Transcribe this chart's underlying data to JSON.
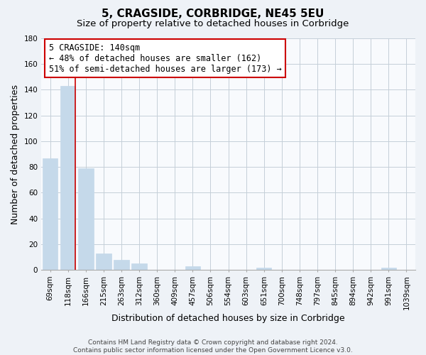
{
  "title": "5, CRAGSIDE, CORBRIDGE, NE45 5EU",
  "subtitle": "Size of property relative to detached houses in Corbridge",
  "xlabel": "Distribution of detached houses by size in Corbridge",
  "ylabel": "Number of detached properties",
  "categories": [
    "69sqm",
    "118sqm",
    "166sqm",
    "215sqm",
    "263sqm",
    "312sqm",
    "360sqm",
    "409sqm",
    "457sqm",
    "506sqm",
    "554sqm",
    "603sqm",
    "651sqm",
    "700sqm",
    "748sqm",
    "797sqm",
    "845sqm",
    "894sqm",
    "942sqm",
    "991sqm",
    "1039sqm"
  ],
  "values": [
    87,
    143,
    79,
    13,
    8,
    5,
    0,
    0,
    3,
    0,
    0,
    0,
    2,
    0,
    0,
    0,
    0,
    0,
    0,
    2,
    0
  ],
  "bar_color": "#c5d9ea",
  "vline_color": "#cc0000",
  "vline_x": 1.4,
  "annotation_line1": "5 CRAGSIDE: 140sqm",
  "annotation_line2": "← 48% of detached houses are smaller (162)",
  "annotation_line3": "51% of semi-detached houses are larger (173) →",
  "annotation_box_facecolor": "#ffffff",
  "annotation_box_edgecolor": "#cc0000",
  "ylim": [
    0,
    180
  ],
  "yticks": [
    0,
    20,
    40,
    60,
    80,
    100,
    120,
    140,
    160,
    180
  ],
  "footer_line1": "Contains HM Land Registry data © Crown copyright and database right 2024.",
  "footer_line2": "Contains public sector information licensed under the Open Government Licence v3.0.",
  "bg_color": "#eef2f7",
  "plot_bg_color": "#f8fafd",
  "grid_color": "#c5cfd8",
  "title_fontsize": 11,
  "subtitle_fontsize": 9.5,
  "axis_label_fontsize": 9,
  "tick_fontsize": 7.5,
  "annotation_fontsize": 8.5,
  "footer_fontsize": 6.5
}
